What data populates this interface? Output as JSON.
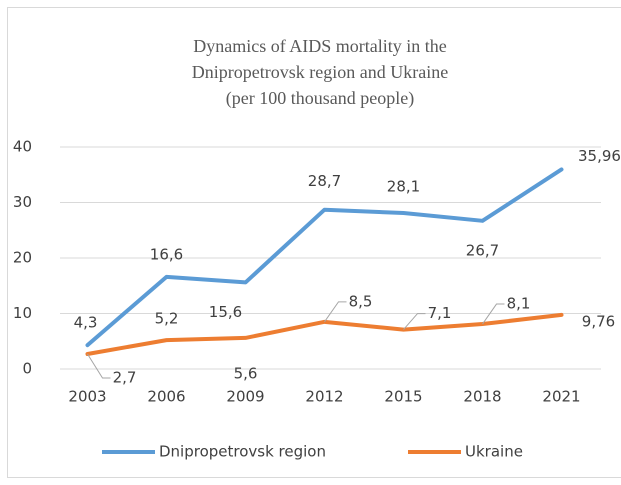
{
  "chart_data": {
    "type": "line",
    "title": [
      "Dynamics of AIDS mortality in the",
      "Dnipropetrovsk region and Ukraine",
      "(per 100 thousand people)"
    ],
    "categories": [
      "2003",
      "2006",
      "2009",
      "2012",
      "2015",
      "2018",
      "2021"
    ],
    "series": [
      {
        "name": "Dnipropetrovsk region",
        "color": "#5b9bd5",
        "values": [
          4.3,
          16.6,
          15.6,
          28.7,
          28.1,
          26.7,
          35.96
        ],
        "value_labels": [
          "4,3",
          "16,6",
          "15,6",
          "28,7",
          "28,1",
          "26,7",
          "35,96"
        ]
      },
      {
        "name": "Ukraine",
        "color": "#ed7d31",
        "values": [
          2.7,
          5.2,
          5.6,
          8.5,
          7.1,
          8.1,
          9.76
        ],
        "value_labels": [
          "2,7",
          "5,2",
          "5,6",
          "8,5",
          "7,1",
          "8,1",
          "9,76"
        ]
      }
    ],
    "ylim": [
      0,
      40
    ],
    "yticks": [
      0,
      10,
      20,
      30,
      40
    ],
    "grid": true,
    "legend": "bottom"
  }
}
